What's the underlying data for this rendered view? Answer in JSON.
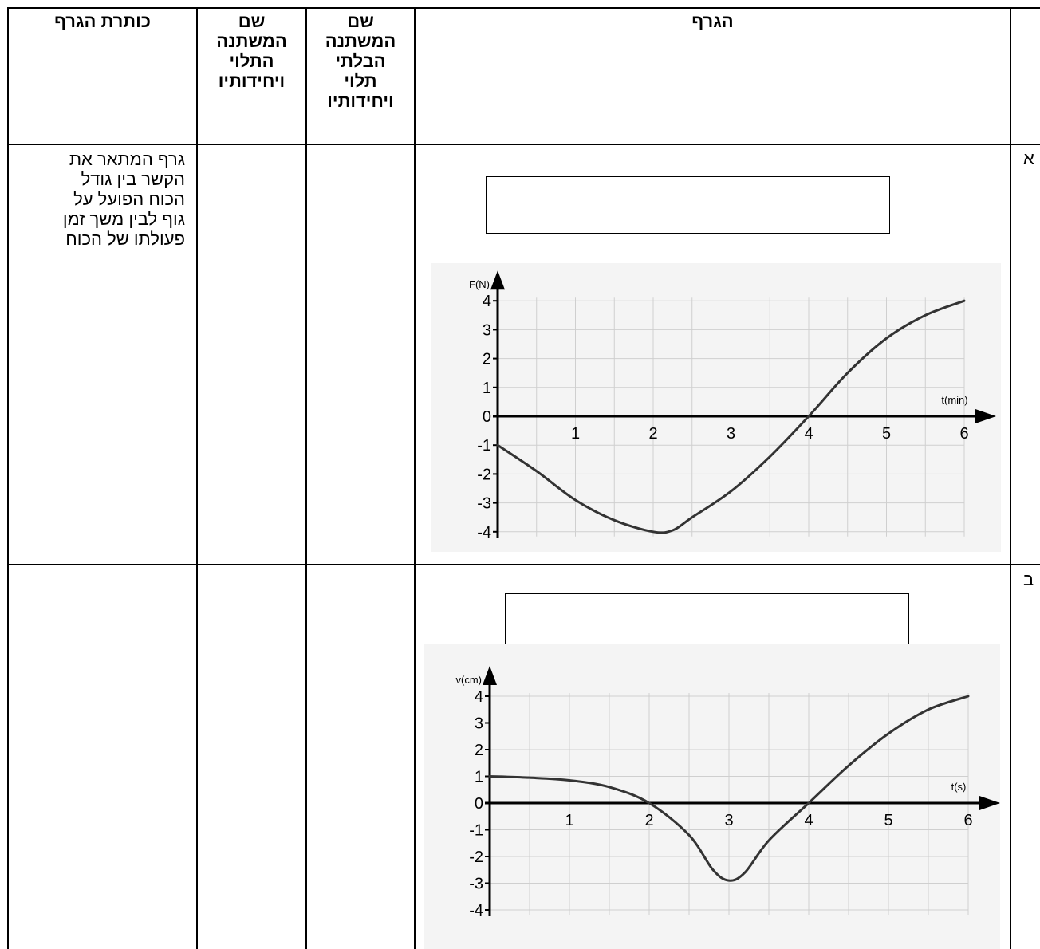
{
  "header": {
    "title_col": "כותרת הגרף",
    "dependent_col": [
      "שם",
      "המשתנה",
      "התלוי",
      "ויחידותיו"
    ],
    "independent_col": [
      "שם",
      "המשתנה",
      "הבלתי",
      "תלוי",
      "ויחידותיו"
    ],
    "graph_col": "הגרף"
  },
  "rows": [
    {
      "tag": "א",
      "description": [
        "גרף המתאר את",
        "הקשר בין גודל",
        "הכוח הפועל על",
        "גוף לבין משך זמן",
        "פעולתו  של הכוח"
      ]
    },
    {
      "tag": "ב",
      "description": []
    }
  ],
  "chart_data": [
    {
      "type": "line",
      "title": "",
      "xlabel": "t(min)",
      "ylabel": "F(N)",
      "xlim": [
        0,
        6
      ],
      "ylim": [
        -4,
        4
      ],
      "x_ticks": [
        "1",
        "2",
        "3",
        "4",
        "5",
        "6"
      ],
      "y_ticks": [
        "4",
        "3",
        "2",
        "1",
        "0",
        "-1",
        "-2",
        "-3",
        "-4"
      ],
      "grid": true,
      "x": [
        0,
        0.5,
        1,
        1.5,
        2,
        2.25,
        2.5,
        3,
        3.5,
        4,
        4.5,
        5,
        5.5,
        6
      ],
      "y": [
        -1,
        -1.9,
        -2.9,
        -3.6,
        -4,
        -3.95,
        -3.5,
        -2.6,
        -1.4,
        0,
        1.5,
        2.7,
        3.5,
        4
      ]
    },
    {
      "type": "line",
      "title": "",
      "xlabel": "t(s)",
      "ylabel": "v(cm)",
      "xlim": [
        0,
        6
      ],
      "ylim": [
        -4,
        4
      ],
      "x_ticks": [
        "1",
        "2",
        "3",
        "4",
        "5",
        "6"
      ],
      "y_ticks": [
        "4",
        "3",
        "2",
        "1",
        "0",
        "-1",
        "-2",
        "-3",
        "-4"
      ],
      "grid": true,
      "x": [
        0,
        0.5,
        1,
        1.5,
        2,
        2.5,
        2.8,
        3,
        3.2,
        3.5,
        4,
        4.5,
        5,
        5.5,
        6
      ],
      "y": [
        1,
        0.95,
        0.85,
        0.6,
        0,
        -1.2,
        -2.5,
        -2.9,
        -2.6,
        -1.4,
        0,
        1.4,
        2.6,
        3.5,
        4
      ]
    }
  ]
}
